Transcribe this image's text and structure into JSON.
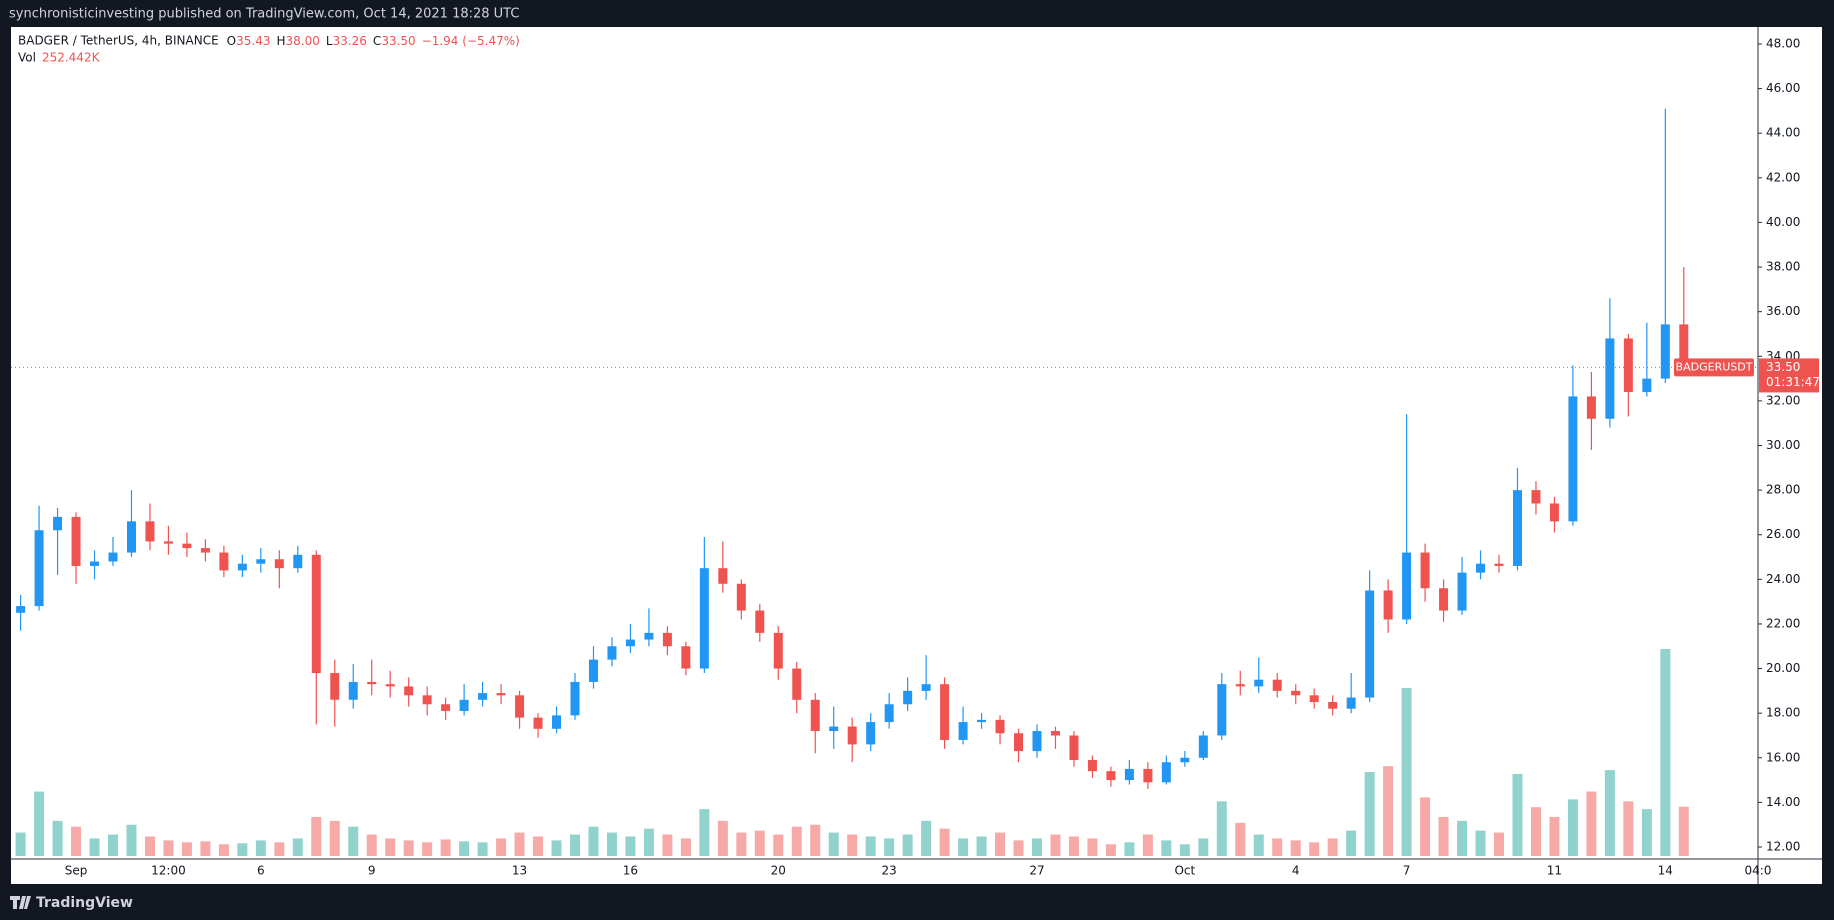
{
  "chart_data": {
    "type": "candlestick",
    "published_note": "synchronisticinvesting published on TradingView.com, Oct 14, 2021 18:28 UTC",
    "title": "BADGER / TetherUS, 4h, BINANCE",
    "ohlc_keys": [
      "O",
      "H",
      "L",
      "C"
    ],
    "ohlc_labels": [
      "35.43",
      "38.00",
      "33.26",
      "33.50"
    ],
    "change_label": "−1.94 (−5.47%)",
    "volume_name": "Vol",
    "volume_label": "252.442K",
    "symbol": "BADGERUSDT",
    "last_price_label": "33.50",
    "countdown": "01:31:47",
    "brand": "TradingView",
    "up_color": "#2196f3",
    "down_color": "#ef5350",
    "volume_up_color": "#92d2cc",
    "volume_down_color": "#f7a9a7",
    "grid": false,
    "x": [
      null,
      null,
      null,
      "Sep",
      null,
      null,
      null,
      null,
      "12:00",
      null,
      null,
      null,
      null,
      "6",
      null,
      null,
      null,
      null,
      null,
      "9",
      null,
      null,
      null,
      null,
      null,
      null,
      null,
      "13",
      null,
      null,
      null,
      null,
      null,
      "16",
      null,
      null,
      null,
      null,
      null,
      null,
      null,
      "20",
      null,
      null,
      null,
      null,
      null,
      "23",
      null,
      null,
      null,
      null,
      null,
      null,
      null,
      "27",
      null,
      null,
      null,
      null,
      null,
      null,
      null,
      "Oct",
      null,
      null,
      null,
      null,
      null,
      "4",
      null,
      null,
      null,
      null,
      null,
      "7",
      null,
      null,
      null,
      null,
      null,
      null,
      null,
      "11",
      null,
      null,
      null,
      null,
      null,
      "14",
      null
    ],
    "x_edge_label": "04:0",
    "open": [
      22.5,
      22.8,
      26.2,
      26.8,
      24.6,
      24.8,
      25.2,
      26.6,
      25.7,
      25.6,
      25.4,
      25.2,
      24.4,
      24.7,
      24.9,
      24.5,
      25.1,
      19.8,
      18.6,
      19.4,
      19.3,
      19.2,
      18.8,
      18.4,
      18.1,
      18.6,
      18.9,
      18.8,
      17.8,
      17.3,
      17.9,
      19.4,
      20.4,
      21.0,
      21.3,
      21.6,
      21.0,
      20.0,
      24.5,
      23.8,
      22.6,
      21.6,
      20.0,
      18.6,
      17.2,
      17.4,
      16.6,
      17.6,
      18.4,
      19.0,
      19.3,
      16.8,
      17.6,
      17.7,
      17.1,
      16.3,
      17.2,
      17.0,
      15.9,
      15.4,
      15.0,
      15.5,
      14.9,
      15.8,
      16.0,
      17.0,
      19.3,
      19.2,
      19.5,
      19.0,
      18.8,
      18.5,
      18.2,
      18.7,
      23.5,
      22.2,
      25.2,
      23.6,
      22.6,
      24.3,
      24.7,
      24.6,
      28.0,
      27.4,
      26.6,
      32.2,
      31.2,
      34.8,
      32.4,
      33.0,
      35.43
    ],
    "high": [
      23.3,
      27.3,
      27.2,
      27.0,
      25.3,
      25.9,
      28.0,
      27.4,
      26.4,
      26.1,
      25.8,
      25.5,
      25.1,
      25.4,
      25.3,
      25.5,
      25.3,
      20.4,
      20.2,
      20.4,
      19.9,
      19.6,
      19.2,
      18.7,
      19.3,
      19.4,
      19.3,
      19.0,
      18.0,
      18.3,
      19.8,
      21.0,
      21.4,
      22.0,
      22.7,
      21.9,
      21.2,
      25.9,
      25.7,
      24.0,
      22.9,
      21.9,
      20.3,
      18.9,
      18.3,
      17.8,
      18.0,
      18.9,
      19.6,
      20.6,
      19.6,
      18.3,
      18.0,
      17.9,
      17.3,
      17.5,
      17.4,
      17.2,
      16.1,
      15.6,
      15.9,
      15.8,
      16.1,
      16.3,
      17.2,
      19.8,
      19.9,
      20.5,
      19.8,
      19.3,
      19.1,
      18.8,
      19.8,
      24.4,
      24.0,
      31.4,
      25.6,
      24.0,
      25.0,
      25.3,
      25.1,
      29.0,
      28.4,
      27.7,
      33.6,
      33.3,
      36.6,
      35.0,
      35.5,
      45.1,
      38.0
    ],
    "low": [
      21.7,
      22.6,
      24.2,
      23.8,
      24.0,
      24.6,
      25.0,
      25.3,
      25.1,
      25.0,
      24.8,
      24.1,
      24.1,
      24.3,
      23.6,
      24.3,
      17.5,
      17.4,
      18.2,
      18.8,
      18.7,
      18.3,
      17.9,
      17.7,
      17.9,
      18.3,
      18.4,
      17.3,
      16.9,
      17.1,
      17.7,
      19.1,
      20.1,
      20.7,
      21.0,
      20.6,
      19.7,
      19.8,
      23.4,
      22.2,
      21.2,
      19.5,
      18.0,
      16.2,
      16.4,
      15.8,
      16.3,
      17.3,
      18.1,
      18.6,
      16.4,
      16.6,
      17.3,
      16.6,
      15.8,
      16.0,
      16.4,
      15.6,
      15.1,
      14.7,
      14.8,
      14.6,
      14.8,
      15.6,
      15.9,
      16.8,
      18.8,
      18.9,
      18.7,
      18.4,
      18.2,
      17.9,
      18.0,
      18.5,
      21.6,
      22.0,
      23.0,
      22.1,
      22.4,
      24.0,
      24.3,
      24.4,
      26.9,
      26.1,
      26.4,
      29.8,
      30.8,
      31.3,
      32.2,
      32.8,
      33.26
    ],
    "close": [
      22.8,
      26.2,
      26.8,
      24.6,
      24.8,
      25.2,
      26.6,
      25.7,
      25.6,
      25.4,
      25.2,
      24.4,
      24.7,
      24.9,
      24.5,
      25.1,
      19.8,
      18.6,
      19.4,
      19.3,
      19.2,
      18.8,
      18.4,
      18.1,
      18.6,
      18.9,
      18.8,
      17.8,
      17.3,
      17.9,
      19.4,
      20.4,
      21.0,
      21.3,
      21.6,
      21.0,
      20.0,
      24.5,
      23.8,
      22.6,
      21.6,
      20.0,
      18.6,
      17.2,
      17.4,
      16.6,
      17.6,
      18.4,
      19.0,
      19.3,
      16.8,
      17.6,
      17.7,
      17.1,
      16.3,
      17.2,
      17.0,
      15.9,
      15.4,
      15.0,
      15.5,
      14.9,
      15.8,
      16.0,
      17.0,
      19.3,
      19.2,
      19.5,
      19.0,
      18.8,
      18.5,
      18.2,
      18.7,
      23.5,
      22.2,
      25.2,
      23.6,
      22.6,
      24.3,
      24.7,
      24.6,
      28.0,
      27.4,
      26.6,
      32.2,
      31.2,
      34.8,
      32.4,
      33.0,
      35.43,
      33.5
    ],
    "volume": [
      120,
      330,
      180,
      150,
      90,
      110,
      160,
      100,
      80,
      70,
      75,
      60,
      65,
      80,
      70,
      90,
      200,
      180,
      150,
      110,
      90,
      80,
      70,
      85,
      75,
      70,
      90,
      120,
      100,
      80,
      110,
      150,
      120,
      100,
      140,
      110,
      90,
      240,
      180,
      120,
      130,
      110,
      150,
      160,
      120,
      110,
      100,
      90,
      110,
      180,
      140,
      90,
      100,
      120,
      80,
      90,
      110,
      100,
      90,
      60,
      70,
      110,
      80,
      60,
      90,
      280,
      170,
      110,
      90,
      80,
      70,
      90,
      130,
      430,
      460,
      860,
      300,
      200,
      180,
      130,
      120,
      420,
      250,
      200,
      290,
      330,
      440,
      280,
      240,
      1060,
      252.442
    ],
    "ylim": [
      12,
      48
    ],
    "yticks": [
      {
        "value": 12,
        "label": "12.00"
      },
      {
        "value": 14,
        "label": "14.00"
      },
      {
        "value": 16,
        "label": "16.00"
      },
      {
        "value": 18,
        "label": "18.00"
      },
      {
        "value": 20,
        "label": "20.00"
      },
      {
        "value": 22,
        "label": "22.00"
      },
      {
        "value": 24,
        "label": "24.00"
      },
      {
        "value": 26,
        "label": "26.00"
      },
      {
        "value": 28,
        "label": "28.00"
      },
      {
        "value": 30,
        "label": "30.00"
      },
      {
        "value": 32,
        "label": "32.00"
      },
      {
        "value": 34,
        "label": "34.00"
      },
      {
        "value": 36,
        "label": "36.00"
      },
      {
        "value": 38,
        "label": "38.00"
      },
      {
        "value": 40,
        "label": "40.00"
      },
      {
        "value": 42,
        "label": "42.00"
      },
      {
        "value": 44,
        "label": "44.00"
      },
      {
        "value": 46,
        "label": "46.00"
      },
      {
        "value": 48,
        "label": "48.00"
      }
    ]
  }
}
